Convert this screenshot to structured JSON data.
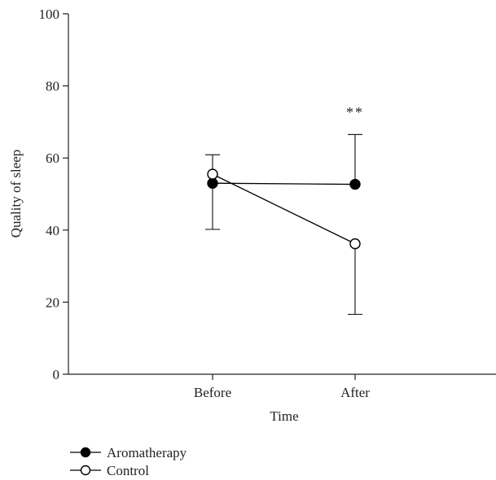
{
  "chart_data": {
    "type": "line",
    "xlabel": "Time",
    "ylabel": "Quality of sleep",
    "categories": [
      "Before",
      "After"
    ],
    "ylim": [
      0,
      100
    ],
    "yticks": [
      0,
      20,
      40,
      60,
      80,
      100
    ],
    "grid": false,
    "legend_position": "bottom-left",
    "series": [
      {
        "name": "Aromatherapy",
        "marker": "filled-circle",
        "color": "#000000",
        "values": [
          53.0,
          52.7
        ],
        "error_low": [
          40.2,
          null
        ],
        "error_high": [
          null,
          66.5
        ]
      },
      {
        "name": "Control",
        "marker": "open-circle",
        "color": "#000000",
        "values": [
          55.5,
          36.2
        ],
        "error_low": [
          null,
          16.6
        ],
        "error_high": [
          60.9,
          null
        ]
      }
    ],
    "annotations": [
      {
        "text": "**",
        "category": "After",
        "y": 70
      }
    ]
  }
}
